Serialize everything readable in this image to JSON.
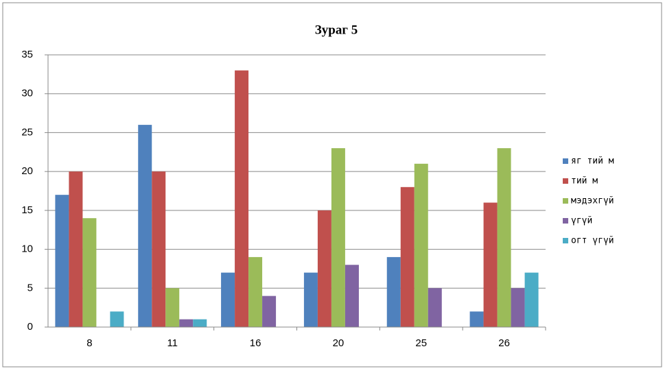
{
  "chart_data": {
    "type": "bar",
    "title": "Зураг 5",
    "categories": [
      "8",
      "11",
      "16",
      "20",
      "25",
      "26"
    ],
    "series": [
      {
        "name": "яг тий м",
        "color": "#4f81bd",
        "values": [
          17,
          26,
          7,
          7,
          9,
          2
        ]
      },
      {
        "name": "тий м",
        "color": "#c0504d",
        "values": [
          20,
          20,
          33,
          15,
          18,
          16
        ]
      },
      {
        "name": "мэдэхгүй",
        "color": "#9bbb59",
        "values": [
          14,
          5,
          9,
          23,
          21,
          23
        ]
      },
      {
        "name": "үгүй",
        "color": "#8064a2",
        "values": [
          0,
          1,
          4,
          8,
          5,
          5
        ]
      },
      {
        "name": "огт үгүй",
        "color": "#4bacc6",
        "values": [
          2,
          1,
          0,
          0,
          0,
          7
        ]
      }
    ],
    "ylim": [
      0,
      35
    ],
    "yticks": [
      0,
      5,
      10,
      15,
      20,
      25,
      30,
      35
    ],
    "grid": true,
    "legend": "right"
  }
}
